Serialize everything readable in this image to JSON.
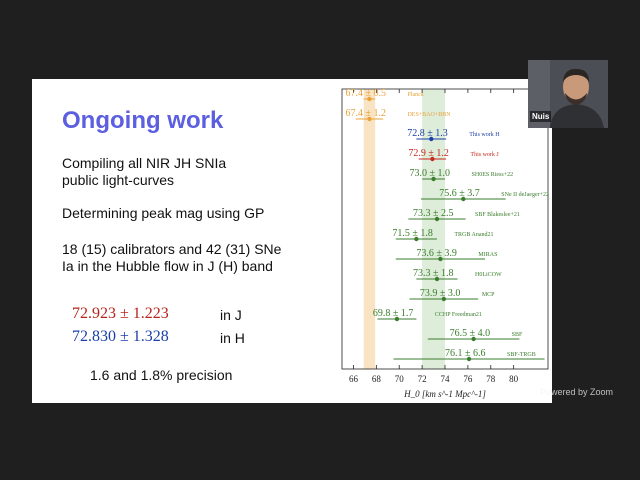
{
  "slide": {
    "title": "Ongoing work",
    "bullets": [
      "Compiling all NIR JH SNIa public light-curves",
      "Determining peak mag using GP",
      "18 (15) calibrators and 42 (31) SNe Ia in the Hubble flow in J (H) band"
    ],
    "results": [
      {
        "value": "72.923 ± 1.223",
        "band": "in J",
        "color": "#b8231c"
      },
      {
        "value": "72.830 ± 1.328",
        "band": "in H",
        "color": "#1a3fa6"
      }
    ],
    "precision": "1.6 and 1.8% precision"
  },
  "chart_data": {
    "type": "scatter",
    "style": "forest plot with horizontal error bars",
    "xlabel": "H_0 [km s^-1 Mpc^-1]",
    "xlim": [
      65,
      83
    ],
    "xticks": [
      66,
      68,
      70,
      72,
      74,
      76,
      78,
      80
    ],
    "bands": [
      {
        "name": "Planck",
        "center": 67.4,
        "halfwidth": 0.5,
        "color": "#f5d7a8"
      },
      {
        "name": "SH0ES",
        "center": 73.0,
        "halfwidth": 1.0,
        "color": "#cfe6cb"
      }
    ],
    "measurements": [
      {
        "label": "67.4 ± 0.5",
        "name": "Planck",
        "value": 67.4,
        "err": 0.5,
        "color": "#e8a33a"
      },
      {
        "label": "67.4 ± 1.2",
        "name": "DES+BAO+BBN",
        "value": 67.4,
        "err": 1.2,
        "color": "#e8a33a"
      },
      {
        "label": "72.8 ± 1.3",
        "name": "This work H",
        "value": 72.8,
        "err": 1.3,
        "color": "#1a3fa6"
      },
      {
        "label": "72.9 ± 1.2",
        "name": "This work J",
        "value": 72.9,
        "err": 1.2,
        "color": "#c8281f"
      },
      {
        "label": "73.0 ± 1.0",
        "name": "SH0ES Riess+22",
        "value": 73.0,
        "err": 1.0,
        "color": "#3a7d2c"
      },
      {
        "label": "75.6 ± 3.7",
        "name": "SNe II deJaeger+22",
        "value": 75.6,
        "err": 3.7,
        "color": "#3a7d2c"
      },
      {
        "label": "73.3 ± 2.5",
        "name": "SBF Blakeslee+21",
        "value": 73.3,
        "err": 2.5,
        "color": "#3a7d2c"
      },
      {
        "label": "71.5 ± 1.8",
        "name": "TRGB Anand21",
        "value": 71.5,
        "err": 1.8,
        "color": "#3a7d2c"
      },
      {
        "label": "73.6 ± 3.9",
        "name": "MIRAS",
        "value": 73.6,
        "err": 3.9,
        "color": "#3a7d2c"
      },
      {
        "label": "73.3 ± 1.8",
        "name": "H0LiCOW",
        "value": 73.3,
        "err": 1.8,
        "color": "#3a7d2c"
      },
      {
        "label": "73.9 ± 3.0",
        "name": "MCP",
        "value": 73.9,
        "err": 3.0,
        "color": "#3a7d2c"
      },
      {
        "label": "69.8 ± 1.7",
        "name": "CCHP Freedman21",
        "value": 69.8,
        "err": 1.7,
        "color": "#3a7d2c"
      },
      {
        "label": "76.5 ± 4.0",
        "name": "SBF",
        "value": 76.5,
        "err": 4.0,
        "color": "#3a7d2c"
      },
      {
        "label": "76.1 ± 6.6",
        "name": "SBF-TRGB",
        "value": 76.1,
        "err": 6.6,
        "color": "#3a7d2c"
      }
    ]
  },
  "speaker": {
    "name": "Nuis"
  },
  "watermark": "Powered by Zoom"
}
